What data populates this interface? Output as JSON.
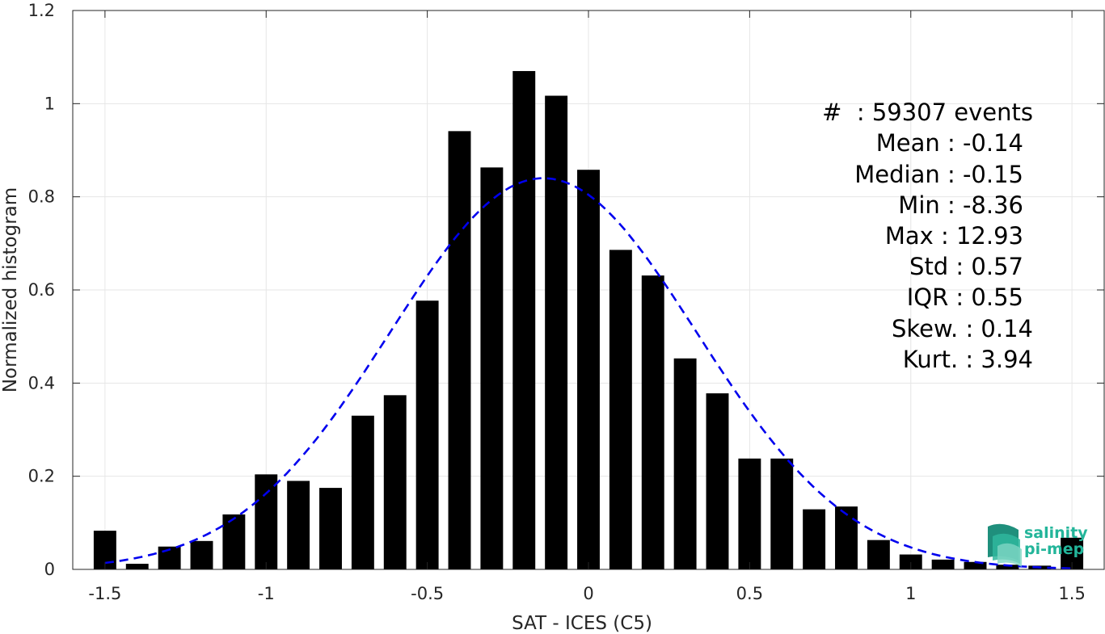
{
  "chart_data": {
    "type": "bar",
    "title": "",
    "xlabel": "SAT - ICES (C5)",
    "ylabel": "Normalized histogram",
    "xlim": [
      -1.6,
      1.6
    ],
    "ylim": [
      0,
      1.2
    ],
    "grid": true,
    "xticks": [
      -1.5,
      -1,
      -0.5,
      0,
      0.5,
      1,
      1.5
    ],
    "xtick_labels": [
      "-1.5",
      "-1",
      "-0.5",
      "0",
      "0.5",
      "1",
      "1.5"
    ],
    "yticks": [
      0,
      0.2,
      0.4,
      0.6,
      0.8,
      1,
      1.2
    ],
    "ytick_labels": [
      "0",
      "0.2",
      "0.4",
      "0.6",
      "0.8",
      "1",
      "1.2"
    ],
    "bar_width": 0.07,
    "x": [
      -1.5,
      -1.4,
      -1.3,
      -1.2,
      -1.1,
      -1.0,
      -0.9,
      -0.8,
      -0.7,
      -0.6,
      -0.5,
      -0.4,
      -0.3,
      -0.2,
      -0.1,
      0.0,
      0.1,
      0.2,
      0.3,
      0.4,
      0.5,
      0.6,
      0.7,
      0.8,
      0.9,
      1.0,
      1.1,
      1.2,
      1.3,
      1.4,
      1.5
    ],
    "values": [
      0.083,
      0.012,
      0.049,
      0.061,
      0.118,
      0.204,
      0.19,
      0.175,
      0.33,
      0.374,
      0.577,
      0.941,
      0.863,
      1.07,
      1.017,
      0.858,
      0.686,
      0.631,
      0.453,
      0.378,
      0.238,
      0.238,
      0.129,
      0.135,
      0.063,
      0.032,
      0.021,
      0.016,
      0.01,
      0.008,
      0.068
    ],
    "bar_color": "#000000",
    "fit_curve": {
      "style": "dashed",
      "color": "#0000ee",
      "mean": -0.14,
      "std": 0.475,
      "peak": 0.84,
      "x_range": [
        -1.5,
        1.5
      ]
    },
    "stats_lines": [
      "#  : 59307 events",
      "Mean : -0.14",
      "Median : -0.15",
      "Min : -8.36",
      "Max : 12.93",
      "Std : 0.57",
      "IQR : 0.55",
      "Skew. : 0.14",
      "Kurt. : 3.94"
    ],
    "logo": {
      "line1": "salinity",
      "line2": "pi-mep",
      "color": "#23b59a"
    }
  }
}
